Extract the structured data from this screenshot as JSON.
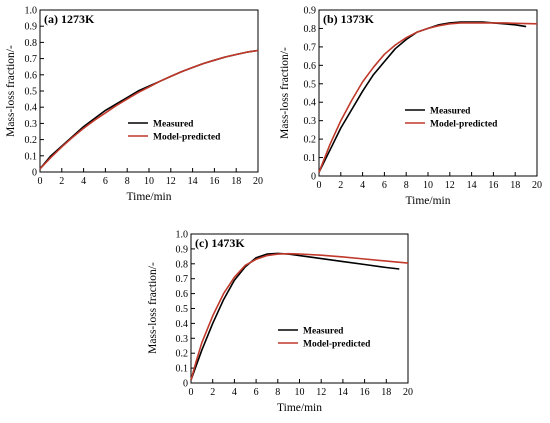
{
  "chart_data": [
    {
      "type": "line",
      "panel_label": "(a) 1273K",
      "xlabel": "Time/min",
      "ylabel": "Mass-loss fraction/-",
      "xlim": [
        0,
        20
      ],
      "ylim": [
        0,
        1.0
      ],
      "xticks": [
        "0",
        "2",
        "4",
        "6",
        "8",
        "10",
        "12",
        "14",
        "16",
        "18",
        "20"
      ],
      "yticks": [
        "0",
        "0.1",
        "0.2",
        "0.3",
        "0.4",
        "0.5",
        "0.6",
        "0.7",
        "0.8",
        "0.9",
        "1.0"
      ],
      "legend": "center-right",
      "series": [
        {
          "name": "Measured",
          "color": "#000000",
          "x": [
            0,
            1,
            2,
            3,
            4,
            5,
            6,
            7,
            8,
            9,
            10,
            11,
            12,
            13,
            14,
            15,
            16,
            17,
            18,
            19,
            20
          ],
          "y": [
            0.02,
            0.1,
            0.16,
            0.22,
            0.28,
            0.33,
            0.38,
            0.42,
            0.46,
            0.5,
            0.53,
            0.56,
            0.59,
            0.62,
            0.645,
            0.67,
            0.69,
            0.71,
            0.725,
            0.74,
            0.75
          ]
        },
        {
          "name": "Model-predicted",
          "color": "#c0392b",
          "x": [
            0,
            1,
            2,
            3,
            4,
            5,
            6,
            7,
            8,
            9,
            10,
            11,
            12,
            13,
            14,
            15,
            16,
            17,
            18,
            19,
            20
          ],
          "y": [
            0.02,
            0.09,
            0.155,
            0.215,
            0.27,
            0.32,
            0.365,
            0.41,
            0.45,
            0.49,
            0.525,
            0.56,
            0.59,
            0.62,
            0.645,
            0.67,
            0.69,
            0.71,
            0.725,
            0.74,
            0.75
          ]
        }
      ]
    },
    {
      "type": "line",
      "panel_label": "(b) 1373K",
      "xlabel": "Time/min",
      "ylabel": "Mass-loss fraction/-",
      "xlim": [
        0,
        20
      ],
      "ylim": [
        0,
        0.9
      ],
      "xticks": [
        "0",
        "2",
        "4",
        "6",
        "8",
        "10",
        "12",
        "14",
        "16",
        "18",
        "20"
      ],
      "yticks": [
        "0",
        "0.1",
        "0.2",
        "0.3",
        "0.4",
        "0.5",
        "0.6",
        "0.7",
        "0.8",
        "0.9"
      ],
      "legend": "center-right",
      "series": [
        {
          "name": "Measured",
          "color": "#000000",
          "x": [
            0,
            1,
            2,
            3,
            4,
            5,
            6,
            7,
            8,
            9,
            10,
            11,
            12,
            13,
            14,
            15,
            16,
            17,
            18,
            19
          ],
          "y": [
            0.02,
            0.14,
            0.26,
            0.36,
            0.46,
            0.55,
            0.62,
            0.69,
            0.74,
            0.78,
            0.8,
            0.82,
            0.83,
            0.835,
            0.835,
            0.835,
            0.83,
            0.825,
            0.82,
            0.81
          ]
        },
        {
          "name": "Model-predicted",
          "color": "#c0392b",
          "x": [
            0,
            1,
            2,
            3,
            4,
            5,
            6,
            7,
            8,
            9,
            10,
            11,
            12,
            13,
            14,
            15,
            16,
            17,
            18,
            19,
            20
          ],
          "y": [
            0.02,
            0.17,
            0.3,
            0.41,
            0.51,
            0.59,
            0.66,
            0.71,
            0.75,
            0.78,
            0.8,
            0.815,
            0.825,
            0.83,
            0.83,
            0.83,
            0.83,
            0.83,
            0.828,
            0.826,
            0.825
          ]
        }
      ]
    },
    {
      "type": "line",
      "panel_label": "(c) 1473K",
      "xlabel": "Time/min",
      "ylabel": "Mass-loss fraction/-",
      "xlim": [
        0,
        20
      ],
      "ylim": [
        0,
        1.0
      ],
      "xticks": [
        "0",
        "2",
        "4",
        "6",
        "8",
        "10",
        "12",
        "14",
        "16",
        "18",
        "20"
      ],
      "yticks": [
        "0",
        "0.1",
        "0.2",
        "0.3",
        "0.4",
        "0.5",
        "0.6",
        "0.7",
        "0.8",
        "0.9",
        "1.0"
      ],
      "legend": "bottom-center",
      "series": [
        {
          "name": "Measured",
          "color": "#000000",
          "x": [
            0,
            0.5,
            1,
            2,
            3,
            4,
            5,
            6,
            7,
            8,
            9,
            10,
            12,
            14,
            16,
            18,
            19.2
          ],
          "y": [
            0.02,
            0.12,
            0.22,
            0.4,
            0.56,
            0.69,
            0.78,
            0.84,
            0.865,
            0.87,
            0.865,
            0.855,
            0.835,
            0.815,
            0.795,
            0.775,
            0.765
          ]
        },
        {
          "name": "Model-predicted",
          "color": "#c0392b",
          "x": [
            0,
            0.5,
            1,
            2,
            3,
            4,
            5,
            6,
            7,
            8,
            9,
            10,
            12,
            14,
            16,
            18,
            20
          ],
          "y": [
            0.02,
            0.15,
            0.27,
            0.45,
            0.6,
            0.71,
            0.79,
            0.83,
            0.855,
            0.865,
            0.868,
            0.866,
            0.858,
            0.846,
            0.832,
            0.818,
            0.805
          ]
        }
      ]
    }
  ]
}
